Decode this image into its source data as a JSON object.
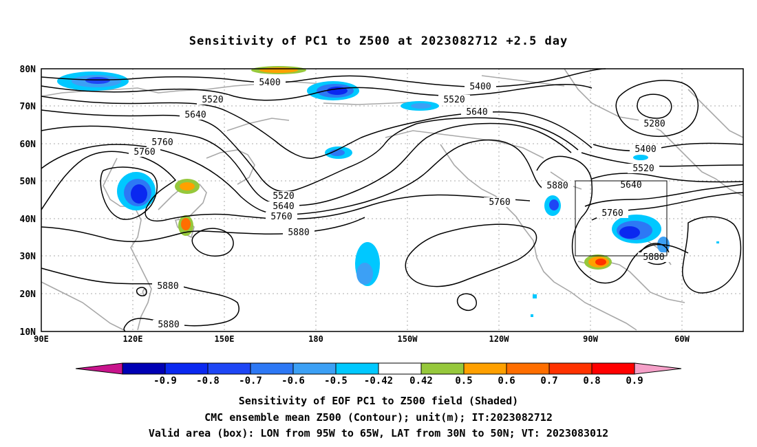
{
  "title": "Sensitivity of PC1 to Z500 at 2023082712 +2.5 day",
  "lat_labels": [
    "80N",
    "70N",
    "60N",
    "50N",
    "40N",
    "30N",
    "20N",
    "10N"
  ],
  "lon_labels": [
    "90E",
    "120E",
    "150E",
    "180",
    "150W",
    "120W",
    "90W",
    "60W"
  ],
  "contour_labels": [
    "5400",
    "5520",
    "5640",
    "5760",
    "5760",
    "5520",
    "5640",
    "5760",
    "5880",
    "5880",
    "5880",
    "5400",
    "5520",
    "5640",
    "5760",
    "5880",
    "5280",
    "5400",
    "5520",
    "5640",
    "5760",
    "5880"
  ],
  "colorbar": {
    "labels": [
      "-0.9",
      "-0.8",
      "-0.7",
      "-0.6",
      "-0.5",
      "-0.42",
      "0.42",
      "0.5",
      "0.6",
      "0.7",
      "0.8",
      "0.9"
    ],
    "colors": [
      "#0000b4",
      "#0a28f0",
      "#1e46f5",
      "#2d78f5",
      "#3ca0f5",
      "#00c8ff",
      "#ffffff",
      "#96c83c",
      "#ffa000",
      "#ff6e00",
      "#ff3200",
      "#ff0000"
    ],
    "left_arrow_color": "#c8148c",
    "right_arrow_color": "#f5a0c8"
  },
  "caption": {
    "line1": "Sensitivity of EOF PC1 to Z500 field (Shaded)",
    "line2": "CMC ensemble mean Z500 (Contour); unit(m); IT:2023082712",
    "line3": "Valid area (box): LON from 95W to 65W, LAT from 30N to 50N; VT: 2023083012"
  },
  "valid_box": {
    "lon_from": "95W",
    "lon_to": "65W",
    "lat_from": "30N",
    "lat_to": "50N"
  }
}
